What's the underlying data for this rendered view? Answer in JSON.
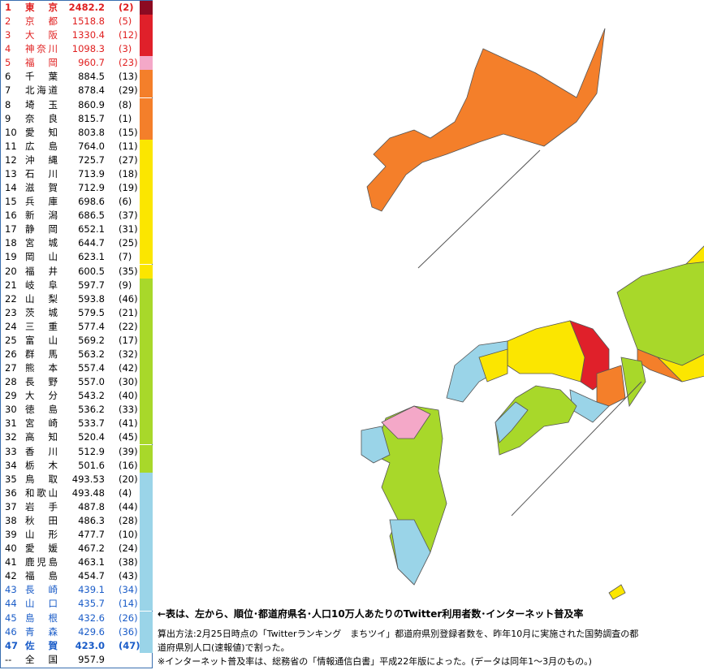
{
  "table": {
    "rows": [
      {
        "rank": "1",
        "name": "東京",
        "value": "2482.2",
        "internet": "(2)",
        "color": "#8c0a22",
        "text": "#e02020",
        "bold": true
      },
      {
        "rank": "2",
        "name": "京都",
        "value": "1518.8",
        "internet": "(5)",
        "color": "#e0202a",
        "text": "#e02020",
        "bold": false
      },
      {
        "rank": "3",
        "name": "大阪",
        "value": "1330.4",
        "internet": "(12)",
        "color": "#e0202a",
        "text": "#e02020",
        "bold": false
      },
      {
        "rank": "4",
        "name": "神奈川",
        "value": "1098.3",
        "internet": "(3)",
        "color": "#e0202a",
        "text": "#e02020",
        "bold": false
      },
      {
        "rank": "5",
        "name": "福岡",
        "value": "960.7",
        "internet": "(23)",
        "color": "#f4a8c8",
        "text": "#e02020",
        "bold": false
      },
      {
        "rank": "6",
        "name": "千葉",
        "value": "884.5",
        "internet": "(13)",
        "color": "#f47f2a",
        "text": "#000000",
        "bold": false
      },
      {
        "rank": "7",
        "name": "北海道",
        "value": "878.4",
        "internet": "(29)",
        "color": "#f47f2a",
        "text": "#000000",
        "bold": false
      },
      {
        "rank": "8",
        "name": "埼玉",
        "value": "860.9",
        "internet": "(8)",
        "color": "#f47f2a",
        "text": "#000000",
        "bold": false
      },
      {
        "rank": "9",
        "name": "奈良",
        "value": "815.7",
        "internet": "(1)",
        "color": "#f47f2a",
        "text": "#000000",
        "bold": false
      },
      {
        "rank": "10",
        "name": "愛知",
        "value": "803.8",
        "internet": "(15)",
        "color": "#f47f2a",
        "text": "#000000",
        "bold": false
      },
      {
        "rank": "11",
        "name": "広島",
        "value": "764.0",
        "internet": "(11)",
        "color": "#fbe600",
        "text": "#000000",
        "bold": false
      },
      {
        "rank": "12",
        "name": "沖縄",
        "value": "725.7",
        "internet": "(27)",
        "color": "#fbe600",
        "text": "#000000",
        "bold": false
      },
      {
        "rank": "13",
        "name": "石川",
        "value": "713.9",
        "internet": "(18)",
        "color": "#fbe600",
        "text": "#000000",
        "bold": false
      },
      {
        "rank": "14",
        "name": "滋賀",
        "value": "712.9",
        "internet": "(19)",
        "color": "#fbe600",
        "text": "#000000",
        "bold": false
      },
      {
        "rank": "15",
        "name": "兵庫",
        "value": "698.6",
        "internet": "(6)",
        "color": "#fbe600",
        "text": "#000000",
        "bold": false
      },
      {
        "rank": "16",
        "name": "新潟",
        "value": "686.5",
        "internet": "(37)",
        "color": "#fbe600",
        "text": "#000000",
        "bold": false
      },
      {
        "rank": "17",
        "name": "静岡",
        "value": "652.1",
        "internet": "(31)",
        "color": "#fbe600",
        "text": "#000000",
        "bold": false
      },
      {
        "rank": "18",
        "name": "宮城",
        "value": "644.7",
        "internet": "(25)",
        "color": "#fbe600",
        "text": "#000000",
        "bold": false
      },
      {
        "rank": "19",
        "name": "岡山",
        "value": "623.1",
        "internet": "(7)",
        "color": "#fbe600",
        "text": "#000000",
        "bold": false
      },
      {
        "rank": "20",
        "name": "福井",
        "value": "600.5",
        "internet": "(35)",
        "color": "#fbe600",
        "text": "#000000",
        "bold": false
      },
      {
        "rank": "21",
        "name": "岐阜",
        "value": "597.7",
        "internet": "(9)",
        "color": "#a8d82a",
        "text": "#000000",
        "bold": false
      },
      {
        "rank": "22",
        "name": "山梨",
        "value": "593.8",
        "internet": "(46)",
        "color": "#a8d82a",
        "text": "#000000",
        "bold": false
      },
      {
        "rank": "23",
        "name": "茨城",
        "value": "579.5",
        "internet": "(21)",
        "color": "#a8d82a",
        "text": "#000000",
        "bold": false
      },
      {
        "rank": "24",
        "name": "三重",
        "value": "577.4",
        "internet": "(22)",
        "color": "#a8d82a",
        "text": "#000000",
        "bold": false
      },
      {
        "rank": "25",
        "name": "富山",
        "value": "569.2",
        "internet": "(17)",
        "color": "#a8d82a",
        "text": "#000000",
        "bold": false
      },
      {
        "rank": "26",
        "name": "群馬",
        "value": "563.2",
        "internet": "(32)",
        "color": "#a8d82a",
        "text": "#000000",
        "bold": false
      },
      {
        "rank": "27",
        "name": "熊本",
        "value": "557.4",
        "internet": "(42)",
        "color": "#a8d82a",
        "text": "#000000",
        "bold": false
      },
      {
        "rank": "28",
        "name": "長野",
        "value": "557.0",
        "internet": "(30)",
        "color": "#a8d82a",
        "text": "#000000",
        "bold": false
      },
      {
        "rank": "29",
        "name": "大分",
        "value": "543.2",
        "internet": "(40)",
        "color": "#a8d82a",
        "text": "#000000",
        "bold": false
      },
      {
        "rank": "30",
        "name": "徳島",
        "value": "536.2",
        "internet": "(33)",
        "color": "#a8d82a",
        "text": "#000000",
        "bold": false
      },
      {
        "rank": "31",
        "name": "宮崎",
        "value": "533.7",
        "internet": "(41)",
        "color": "#a8d82a",
        "text": "#000000",
        "bold": false
      },
      {
        "rank": "32",
        "name": "高知",
        "value": "520.4",
        "internet": "(45)",
        "color": "#a8d82a",
        "text": "#000000",
        "bold": false
      },
      {
        "rank": "33",
        "name": "香川",
        "value": "512.9",
        "internet": "(39)",
        "color": "#a8d82a",
        "text": "#000000",
        "bold": false
      },
      {
        "rank": "34",
        "name": "栃木",
        "value": "501.6",
        "internet": "(16)",
        "color": "#a8d82a",
        "text": "#000000",
        "bold": false
      },
      {
        "rank": "35",
        "name": "鳥取",
        "value": "493.53",
        "internet": "(20)",
        "color": "#9ad4e8",
        "text": "#000000",
        "bold": false
      },
      {
        "rank": "36",
        "name": "和歌山",
        "value": "493.48",
        "internet": "(4)",
        "color": "#9ad4e8",
        "text": "#000000",
        "bold": false
      },
      {
        "rank": "37",
        "name": "岩手",
        "value": "487.8",
        "internet": "(44)",
        "color": "#9ad4e8",
        "text": "#000000",
        "bold": false
      },
      {
        "rank": "38",
        "name": "秋田",
        "value": "486.3",
        "internet": "(28)",
        "color": "#9ad4e8",
        "text": "#000000",
        "bold": false
      },
      {
        "rank": "39",
        "name": "山形",
        "value": "477.7",
        "internet": "(10)",
        "color": "#9ad4e8",
        "text": "#000000",
        "bold": false
      },
      {
        "rank": "40",
        "name": "愛媛",
        "value": "467.2",
        "internet": "(24)",
        "color": "#9ad4e8",
        "text": "#000000",
        "bold": false
      },
      {
        "rank": "41",
        "name": "鹿児島",
        "value": "463.1",
        "internet": "(38)",
        "color": "#9ad4e8",
        "text": "#000000",
        "bold": false
      },
      {
        "rank": "42",
        "name": "福島",
        "value": "454.7",
        "internet": "(43)",
        "color": "#9ad4e8",
        "text": "#000000",
        "bold": false
      },
      {
        "rank": "43",
        "name": "長崎",
        "value": "439.1",
        "internet": "(34)",
        "color": "#9ad4e8",
        "text": "#1a5cc8",
        "bold": false
      },
      {
        "rank": "44",
        "name": "山口",
        "value": "435.7",
        "internet": "(14)",
        "color": "#9ad4e8",
        "text": "#1a5cc8",
        "bold": false
      },
      {
        "rank": "45",
        "name": "島根",
        "value": "432.6",
        "internet": "(26)",
        "color": "#9ad4e8",
        "text": "#1a5cc8",
        "bold": false
      },
      {
        "rank": "46",
        "name": "青森",
        "value": "429.6",
        "internet": "(36)",
        "color": "#9ad4e8",
        "text": "#1a5cc8",
        "bold": false
      },
      {
        "rank": "47",
        "name": "佐賀",
        "value": "423.0",
        "internet": "(47)",
        "color": "#9ad4e8",
        "text": "#1a5cc8",
        "bold": true
      }
    ],
    "total": {
      "rank": "--",
      "name": "全国",
      "value": "957.9"
    }
  },
  "note": {
    "heading": "←表は、左から、順位･都道府県名･人口10万人あたりのTwitter利用者数･インターネット普及率",
    "lines": [
      "算出方法:2月25日時点の「Twitterランキング　まちツイ」都道府県別登録者数を、昨年10月に実施された国勢調査の都",
      "道府県別人口(速報値)で割った。",
      "※インターネット普及率は、総務省の「情報通信白書」平成22年版によった。(データは同年1～3月のもの。)"
    ]
  }
}
